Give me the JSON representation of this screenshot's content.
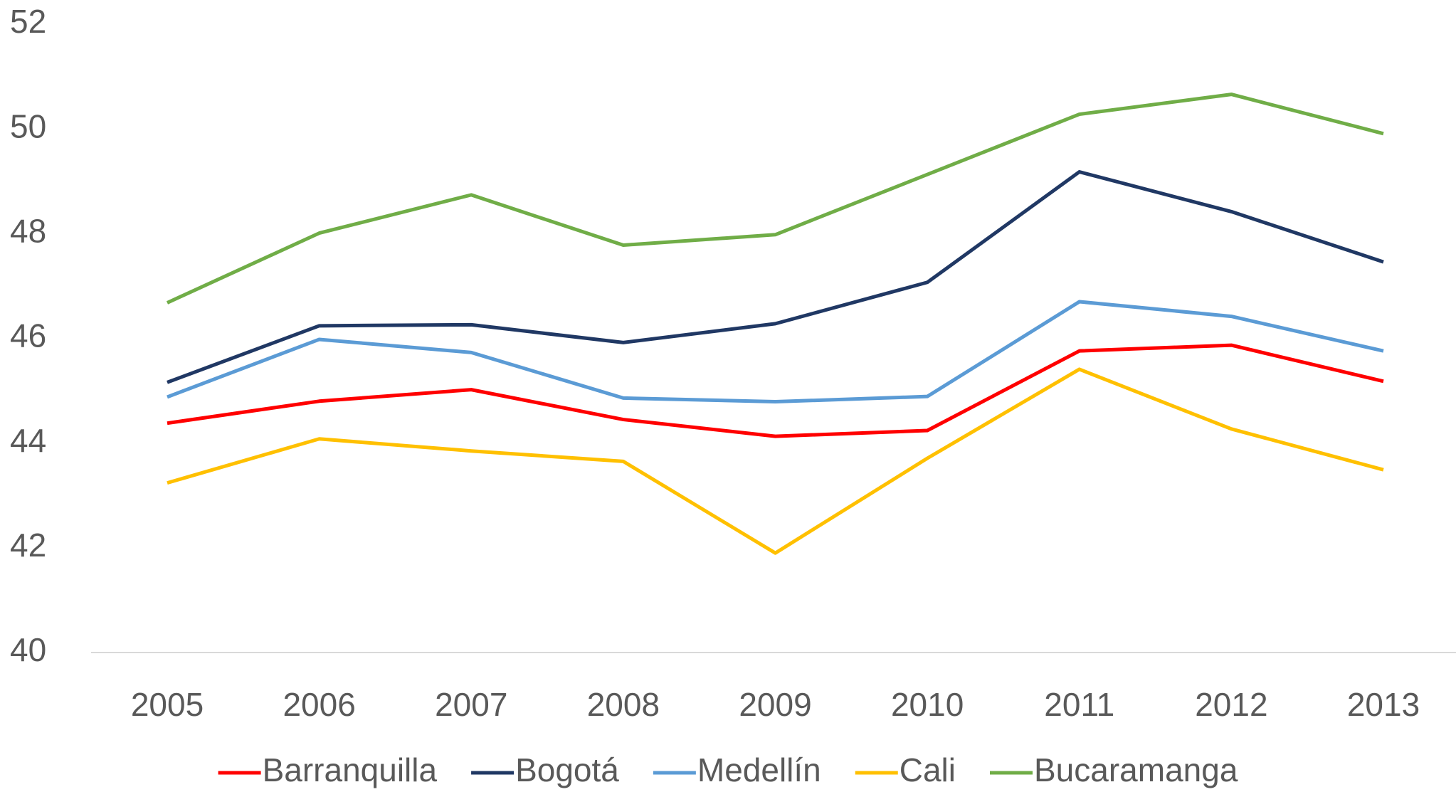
{
  "chart_data": {
    "type": "line",
    "categories": [
      "2005",
      "2006",
      "2007",
      "2008",
      "2009",
      "2010",
      "2011",
      "2012",
      "2013"
    ],
    "series": [
      {
        "name": "Barranquilla",
        "color": "#ff0000",
        "values": [
          44.38,
          44.8,
          45.02,
          44.45,
          44.13,
          44.24,
          45.76,
          45.87,
          45.18
        ]
      },
      {
        "name": "Bogotá",
        "color": "#203864",
        "values": [
          45.16,
          46.24,
          46.26,
          45.92,
          46.28,
          47.07,
          49.18,
          48.42,
          47.46
        ]
      },
      {
        "name": "Medellín",
        "color": "#5b9bd5",
        "values": [
          44.88,
          45.98,
          45.73,
          44.86,
          44.79,
          44.89,
          46.7,
          46.42,
          45.76
        ]
      },
      {
        "name": "Cali",
        "color": "#ffc000",
        "values": [
          43.24,
          44.08,
          43.85,
          43.65,
          41.9,
          43.71,
          45.41,
          44.27,
          43.49
        ]
      },
      {
        "name": "Bucaramanga",
        "color": "#70ad47",
        "values": [
          46.68,
          48.01,
          48.74,
          47.78,
          47.98,
          49.13,
          50.28,
          50.66,
          49.91
        ]
      }
    ],
    "ylim": [
      40,
      52
    ],
    "yticks": [
      40,
      42,
      44,
      46,
      48,
      50,
      52
    ],
    "grid": false,
    "legend": "bottom"
  }
}
